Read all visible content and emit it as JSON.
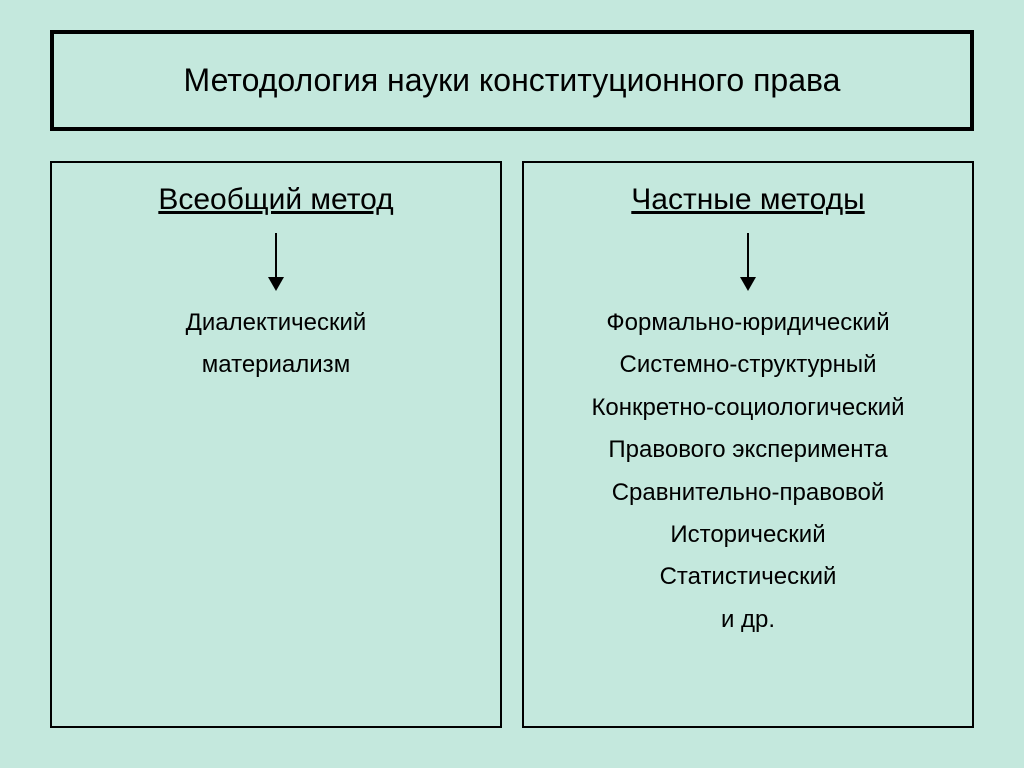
{
  "type": "diagram",
  "background_color": "#c4e8dd",
  "border_color": "#000000",
  "text_color": "#000000",
  "title": {
    "text": "Методология науки конституционного права",
    "fontsize": 32,
    "border_width": 4
  },
  "columns": [
    {
      "header": "Всеобщий метод",
      "header_fontsize": 30,
      "items": [
        "Диалектический",
        "материализм"
      ],
      "item_fontsize": 24
    },
    {
      "header": "Частные методы",
      "header_fontsize": 30,
      "items": [
        "Формально-юридический",
        "Системно-структурный",
        "Конкретно-социологический",
        "Правового эксперимента",
        "Сравнительно-правовой",
        "Исторический",
        "Статистический",
        "и др."
      ],
      "item_fontsize": 24
    }
  ],
  "arrow": {
    "line_width": 2,
    "line_height": 44,
    "head_width": 16,
    "head_height": 14,
    "color": "#000000"
  }
}
